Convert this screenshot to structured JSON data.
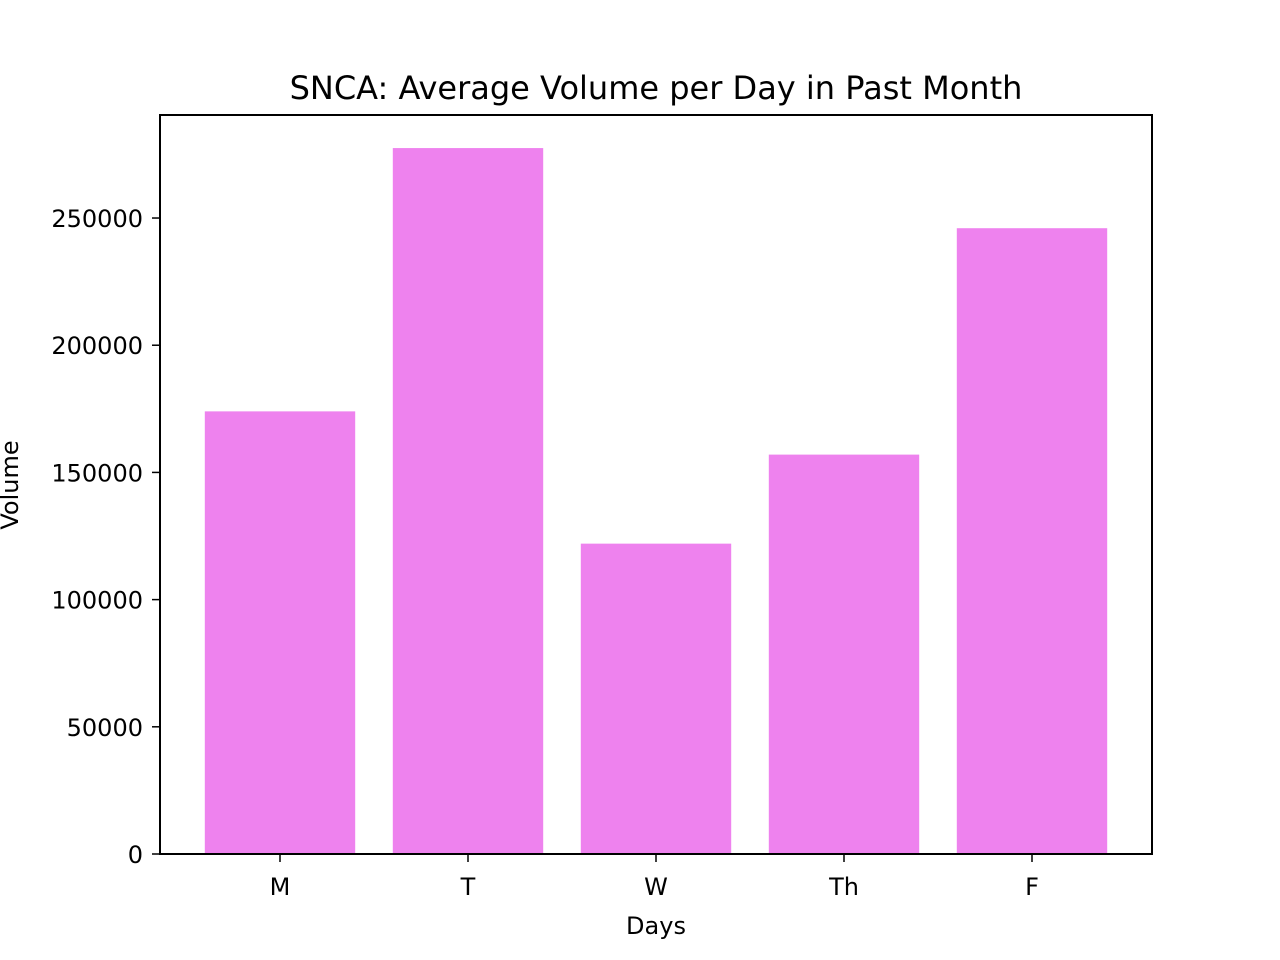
{
  "chart_data": {
    "type": "bar",
    "title": "SNCA: Average Volume per Day in Past Month",
    "xlabel": "Days",
    "ylabel": "Volume",
    "categories": [
      "M",
      "T",
      "W",
      "Th",
      "F"
    ],
    "values": [
      174000,
      277500,
      122000,
      157000,
      246000
    ],
    "ylim": [
      0,
      290500
    ],
    "yticks": [
      0,
      50000,
      100000,
      150000,
      200000,
      250000
    ],
    "ytick_labels": [
      "0",
      "50000",
      "100000",
      "150000",
      "200000",
      "250000"
    ],
    "bar_color": "#ee82ee",
    "grid": false,
    "legend": "none"
  }
}
